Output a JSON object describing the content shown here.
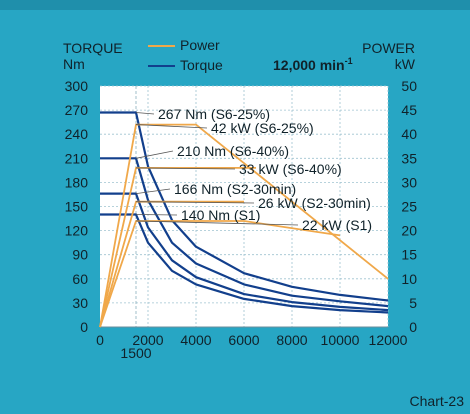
{
  "header": {
    "left_label": "TORQUE",
    "left_unit": "Nm",
    "right_label": "POWER",
    "right_unit": "kW",
    "speed_base": "12,000 min",
    "speed_exp": "-1"
  },
  "legend": [
    {
      "name": "Power",
      "color": "#f0a84a"
    },
    {
      "name": "Torque",
      "color": "#123f8c"
    }
  ],
  "footer": {
    "chart_id": "Chart-23"
  },
  "chart_data": {
    "type": "line",
    "xlabel": "",
    "ylabel": "TORQUE Nm",
    "y2label": "POWER kW",
    "xlim": [
      0,
      12000
    ],
    "ylim": [
      0,
      300
    ],
    "y2lim": [
      0,
      50
    ],
    "x_ticks": [
      0,
      2000,
      4000,
      6000,
      8000,
      10000,
      12000
    ],
    "x_extra_tick": 1500,
    "y_ticks": [
      0,
      30,
      60,
      90,
      120,
      150,
      180,
      210,
      240,
      270,
      300
    ],
    "y2_ticks": [
      0,
      5,
      10,
      15,
      20,
      25,
      30,
      35,
      40,
      45,
      50
    ],
    "grid": true,
    "legend_position": "top",
    "annotations": [
      {
        "text": "267 Nm (S6-25%)",
        "series": "torque_s6_25"
      },
      {
        "text": "42 kW (S6-25%)",
        "series": "power_s6_25"
      },
      {
        "text": "210 Nm (S6-40%)",
        "series": "torque_s6_40"
      },
      {
        "text": "33 kW (S6-40%)",
        "series": "power_s6_40"
      },
      {
        "text": "166 Nm (S2-30min)",
        "series": "torque_s2"
      },
      {
        "text": "26 kW (S2-30min)",
        "series": "power_s2"
      },
      {
        "text": "140 Nm (S1)",
        "series": "torque_s1"
      },
      {
        "text": "22 kW (S1)",
        "series": "power_s1"
      }
    ],
    "series": [
      {
        "id": "torque_s6_25",
        "axis": "left",
        "x": [
          0,
          1500,
          2000,
          3000,
          4000,
          6000,
          8000,
          10000,
          12000
        ],
        "values": [
          267,
          267,
          200,
          133,
          100,
          67,
          50,
          40,
          33
        ]
      },
      {
        "id": "torque_s6_40",
        "axis": "left",
        "x": [
          0,
          1500,
          2000,
          3000,
          4000,
          6000,
          8000,
          10000,
          12000
        ],
        "values": [
          210,
          210,
          158,
          105,
          79,
          53,
          39,
          32,
          26
        ]
      },
      {
        "id": "torque_s2",
        "axis": "left",
        "x": [
          0,
          1500,
          2000,
          3000,
          4000,
          6000,
          8000,
          10000,
          12000
        ],
        "values": [
          166,
          166,
          124,
          83,
          62,
          41,
          31,
          25,
          21
        ]
      },
      {
        "id": "torque_s1",
        "axis": "left",
        "x": [
          0,
          1500,
          2000,
          3000,
          4000,
          6000,
          8000,
          10000,
          12000
        ],
        "values": [
          140,
          140,
          105,
          70,
          53,
          35,
          26,
          21,
          18
        ]
      },
      {
        "id": "power_s6_25",
        "axis": "right",
        "x": [
          0,
          1500,
          4000,
          12000
        ],
        "values": [
          0,
          42,
          42,
          10
        ]
      },
      {
        "id": "power_s6_40",
        "axis": "right",
        "x": [
          0,
          1500,
          6500
        ],
        "values": [
          0,
          33,
          33
        ]
      },
      {
        "id": "power_s2",
        "axis": "right",
        "x": [
          0,
          1500,
          6000
        ],
        "values": [
          0,
          26,
          26
        ]
      },
      {
        "id": "power_s1",
        "axis": "right",
        "x": [
          0,
          1500,
          6000,
          10000
        ],
        "values": [
          0,
          22,
          22,
          19
        ]
      }
    ]
  }
}
